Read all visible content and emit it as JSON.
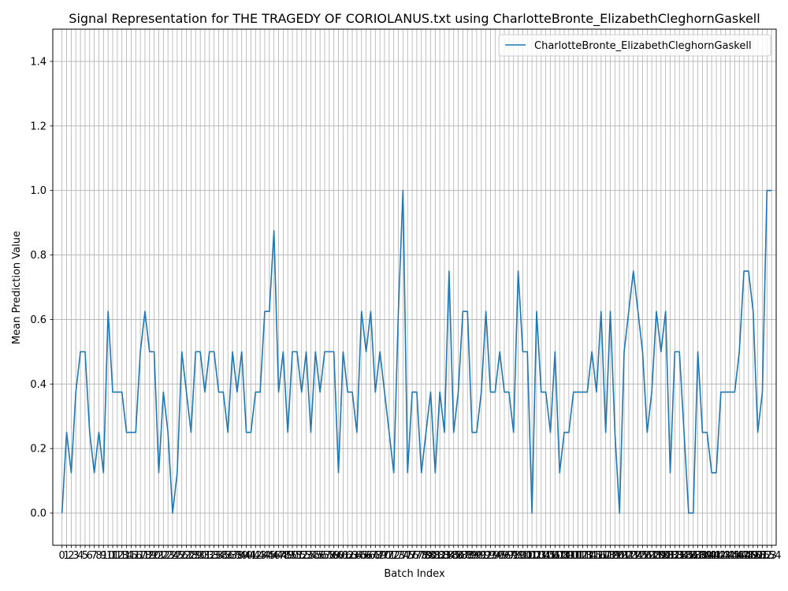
{
  "chart_data": {
    "type": "line",
    "title": "Signal Representation for THE TRAGEDY OF CORIOLANUS.txt using CharlotteBronte_ElizabethCleghornGaskell",
    "xlabel": "Batch Index",
    "ylabel": "Mean Prediction Value",
    "xlim": [
      -2,
      155
    ],
    "ylim": [
      -0.1,
      1.5
    ],
    "yticks": [
      0.0,
      0.2,
      0.4,
      0.6,
      0.8,
      1.0,
      1.2,
      1.4
    ],
    "grid": true,
    "legend_position": "top-right",
    "line_color": "#1f77b4",
    "series": [
      {
        "name": "CharlotteBronte_ElizabethCleghornGaskell",
        "values": [
          0.0,
          0.25,
          0.125,
          0.375,
          0.5,
          0.5,
          0.25,
          0.125,
          0.25,
          0.125,
          0.625,
          0.375,
          0.375,
          0.375,
          0.25,
          0.25,
          0.25,
          0.5,
          0.625,
          0.5,
          0.5,
          0.125,
          0.375,
          0.25,
          0.0,
          0.125,
          0.5,
          0.375,
          0.25,
          0.5,
          0.5,
          0.375,
          0.5,
          0.5,
          0.375,
          0.375,
          0.25,
          0.5,
          0.375,
          0.5,
          0.25,
          0.25,
          0.375,
          0.375,
          0.625,
          0.625,
          0.875,
          0.375,
          0.5,
          0.25,
          0.5,
          0.5,
          0.375,
          0.5,
          0.25,
          0.5,
          0.375,
          0.5,
          0.5,
          0.5,
          0.125,
          0.5,
          0.375,
          0.375,
          0.25,
          0.625,
          0.5,
          0.625,
          0.375,
          0.5,
          0.375,
          0.25,
          0.125,
          0.625,
          1.0,
          0.125,
          0.375,
          0.375,
          0.125,
          0.25,
          0.375,
          0.125,
          0.375,
          0.25,
          0.75,
          0.25,
          0.375,
          0.625,
          0.625,
          0.25,
          0.25,
          0.375,
          0.625,
          0.375,
          0.375,
          0.5,
          0.375,
          0.375,
          0.25,
          0.75,
          0.5,
          0.5,
          0.0,
          0.625,
          0.375,
          0.375,
          0.25,
          0.5,
          0.125,
          0.25,
          0.25,
          0.375,
          0.375,
          0.375,
          0.375,
          0.5,
          0.375,
          0.625,
          0.25,
          0.625,
          0.25,
          0.0,
          0.5,
          0.625,
          0.75,
          0.625,
          0.5,
          0.25,
          0.375,
          0.625,
          0.5,
          0.625,
          0.125,
          0.5,
          0.5,
          0.25,
          0.0,
          0.0,
          0.5,
          0.25,
          0.25,
          0.125,
          0.125,
          0.375,
          0.375,
          0.375,
          0.375,
          0.5,
          0.75,
          0.75,
          0.625,
          0.25,
          0.375,
          1.0,
          1.0
        ]
      }
    ]
  }
}
